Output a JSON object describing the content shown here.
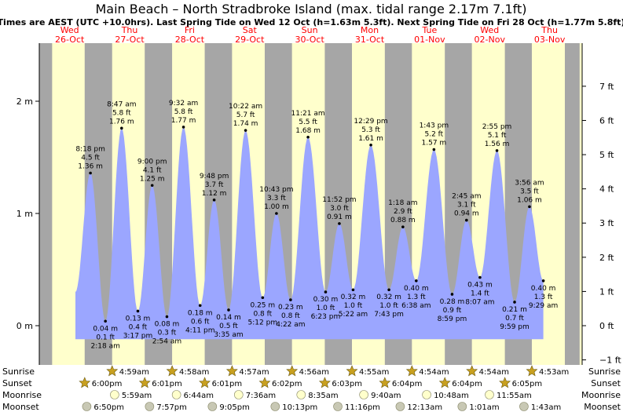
{
  "chart_data": {
    "type": "area",
    "title": "Main Beach – North Stradbroke Island (max. tidal range 2.17m 7.1ft)",
    "subtitle": "Times are AEST (UTC +10.0hrs). Last Spring Tide on Wed 12 Oct (h=1.63m 5.3ft). Next Spring Tide on Fri 28 Oct (h=1.77m 5.8ft)",
    "x_unit": "hours from 26-Oct 00:00",
    "ylim_m": [
      -0.3,
      2.35
    ],
    "y_ticks_m": [
      {
        "value": 0,
        "label": "0 m"
      },
      {
        "value": 1,
        "label": "1 m"
      },
      {
        "value": 2,
        "label": "2 m"
      }
    ],
    "y_ticks_ft": [
      {
        "value": -1,
        "label": "−1 ft"
      },
      {
        "value": 0,
        "label": "0 ft"
      },
      {
        "value": 1,
        "label": "1 ft"
      },
      {
        "value": 2,
        "label": "2 ft"
      },
      {
        "value": 3,
        "label": "3 ft"
      },
      {
        "value": 4,
        "label": "4 ft"
      },
      {
        "value": 5,
        "label": "5 ft"
      },
      {
        "value": 6,
        "label": "6 ft"
      },
      {
        "value": 7,
        "label": "7 ft"
      }
    ],
    "days": [
      {
        "day": "Wed",
        "date": "26-Oct",
        "hours": 0
      },
      {
        "day": "Thu",
        "date": "27-Oct",
        "hours": 24
      },
      {
        "day": "Fri",
        "date": "28-Oct",
        "hours": 48
      },
      {
        "day": "Sat",
        "date": "29-Oct",
        "hours": 72
      },
      {
        "day": "Sun",
        "date": "30-Oct",
        "hours": 96
      },
      {
        "day": "Mon",
        "date": "31-Oct",
        "hours": 120
      },
      {
        "day": "Tue",
        "date": "01-Nov",
        "hours": 144
      },
      {
        "day": "Wed",
        "date": "02-Nov",
        "hours": 168
      },
      {
        "day": "Thu",
        "date": "03-Nov",
        "hours": 192
      }
    ],
    "night_bands_hours": [
      [
        -6,
        4.98
      ],
      [
        18,
        28.98
      ],
      [
        42.02,
        52.97
      ],
      [
        66.02,
        76.95
      ],
      [
        90.03,
        100.93
      ],
      [
        114.05,
        124.92
      ],
      [
        138.07,
        148.9
      ],
      [
        162.07,
        172.9
      ],
      [
        186.08,
        196.88
      ],
      [
        210.08,
        216
      ]
    ],
    "tides": [
      {
        "t": 20.3,
        "h": 1.36,
        "time": "8:18 pm",
        "ft": "4.5 ft",
        "m": "1.36 m",
        "type": "high"
      },
      {
        "t": 26.3,
        "h": 0.04,
        "time": "2:18 am",
        "ft": "0.1 ft",
        "m": "0.04 m",
        "type": "low"
      },
      {
        "t": 32.78,
        "h": 1.76,
        "time": "8:47 am",
        "ft": "5.8 ft",
        "m": "1.76 m",
        "type": "high"
      },
      {
        "t": 39.28,
        "h": 0.13,
        "time": "3:17 pm",
        "ft": "0.4 ft",
        "m": "0.13 m",
        "type": "low"
      },
      {
        "t": 45.0,
        "h": 1.25,
        "time": "9:00 pm",
        "ft": "4.1 ft",
        "m": "1.25 m",
        "type": "high"
      },
      {
        "t": 50.9,
        "h": 0.08,
        "time": "2:54 am",
        "ft": "0.3 ft",
        "m": "0.08 m",
        "type": "low"
      },
      {
        "t": 57.53,
        "h": 1.77,
        "time": "9:32 am",
        "ft": "5.8 ft",
        "m": "1.77 m",
        "type": "high"
      },
      {
        "t": 64.18,
        "h": 0.18,
        "time": "4:11 pm",
        "ft": "0.6 ft",
        "m": "0.18 m",
        "type": "low"
      },
      {
        "t": 69.8,
        "h": 1.12,
        "time": "9:48 pm",
        "ft": "3.7 ft",
        "m": "1.12 m",
        "type": "high"
      },
      {
        "t": 75.58,
        "h": 0.14,
        "time": "3:35 am",
        "ft": "0.5 ft",
        "m": "0.14 m",
        "type": "low"
      },
      {
        "t": 82.37,
        "h": 1.74,
        "time": "10:22 am",
        "ft": "5.7 ft",
        "m": "1.74 m",
        "type": "high"
      },
      {
        "t": 89.2,
        "h": 0.25,
        "time": "5:12 pm",
        "ft": "0.8 ft",
        "m": "0.25 m",
        "type": "low"
      },
      {
        "t": 94.72,
        "h": 1.0,
        "time": "10:43 pm",
        "ft": "3.3 ft",
        "m": "1.00 m",
        "type": "high"
      },
      {
        "t": 100.37,
        "h": 0.23,
        "time": "4:22 am",
        "ft": "0.8 ft",
        "m": "0.23 m",
        "type": "low"
      },
      {
        "t": 107.35,
        "h": 1.68,
        "time": "11:21 am",
        "ft": "5.5 ft",
        "m": "1.68 m",
        "type": "high"
      },
      {
        "t": 114.38,
        "h": 0.3,
        "time": "6:23 pm",
        "ft": "1.0 ft",
        "m": "0.30 m",
        "type": "low"
      },
      {
        "t": 119.87,
        "h": 0.91,
        "time": "11:52 pm",
        "ft": "3.0 ft",
        "m": "0.91 m",
        "type": "high"
      },
      {
        "t": 125.37,
        "h": 0.32,
        "time": "5:22 am",
        "ft": "1.0 ft",
        "m": "0.32 m",
        "type": "low"
      },
      {
        "t": 132.48,
        "h": 1.61,
        "time": "12:29 pm",
        "ft": "5.3 ft",
        "m": "1.61 m",
        "type": "high"
      },
      {
        "t": 139.72,
        "h": 0.32,
        "time": "7:43 pm",
        "ft": "1.0 ft",
        "m": "0.32 m",
        "type": "low"
      },
      {
        "t": 145.3,
        "h": 0.88,
        "time": "1:18 am",
        "ft": "2.9 ft",
        "m": "0.88 m",
        "type": "high"
      },
      {
        "t": 150.63,
        "h": 0.4,
        "time": "6:38 am",
        "ft": "1.3 ft",
        "m": "0.40 m",
        "type": "low"
      },
      {
        "t": 157.72,
        "h": 1.57,
        "time": "1:43 pm",
        "ft": "5.2 ft",
        "m": "1.57 m",
        "type": "high"
      },
      {
        "t": 164.98,
        "h": 0.28,
        "time": "8:59 pm",
        "ft": "0.9 ft",
        "m": "0.28 m",
        "type": "low"
      },
      {
        "t": 170.75,
        "h": 0.94,
        "time": "2:45 am",
        "ft": "3.1 ft",
        "m": "0.94 m",
        "type": "high"
      },
      {
        "t": 176.12,
        "h": 0.43,
        "time": "8:07 am",
        "ft": "1.4 ft",
        "m": "0.43 m",
        "type": "low"
      },
      {
        "t": 182.92,
        "h": 1.56,
        "time": "2:55 pm",
        "ft": "5.1 ft",
        "m": "1.56 m",
        "type": "high"
      },
      {
        "t": 189.98,
        "h": 0.21,
        "time": "9:59 pm",
        "ft": "0.7 ft",
        "m": "0.21 m",
        "type": "low"
      },
      {
        "t": 195.93,
        "h": 1.06,
        "time": "3:56 am",
        "ft": "3.5 ft",
        "m": "1.06 m",
        "type": "high"
      },
      {
        "t": 201.48,
        "h": 0.4,
        "time": "9:29 am",
        "ft": "1.3 ft",
        "m": "0.40 m",
        "type": "low"
      }
    ],
    "curve_start": {
      "t": 14.3,
      "h": 0.3
    },
    "sun_moon": {
      "row_labels": [
        "Sunrise",
        "Sunset",
        "Moonrise",
        "Moonset"
      ],
      "sunrise": [
        {
          "t": 28.98,
          "label": "4:59am"
        },
        {
          "t": 52.97,
          "label": "4:58am"
        },
        {
          "t": 76.95,
          "label": "4:57am"
        },
        {
          "t": 100.93,
          "label": "4:56am"
        },
        {
          "t": 124.92,
          "label": "4:55am"
        },
        {
          "t": 148.9,
          "label": "4:54am"
        },
        {
          "t": 172.9,
          "label": "4:54am"
        },
        {
          "t": 196.88,
          "label": "4:53am"
        }
      ],
      "sunset": [
        {
          "t": 18.0,
          "label": "6:00pm"
        },
        {
          "t": 42.02,
          "label": "6:01pm"
        },
        {
          "t": 66.02,
          "label": "6:01pm"
        },
        {
          "t": 90.03,
          "label": "6:02pm"
        },
        {
          "t": 114.05,
          "label": "6:03pm"
        },
        {
          "t": 138.07,
          "label": "6:04pm"
        },
        {
          "t": 162.07,
          "label": "6:04pm"
        },
        {
          "t": 186.08,
          "label": "6:05pm"
        }
      ],
      "moonrise": [
        {
          "t": 29.98,
          "label": "5:59am"
        },
        {
          "t": 54.73,
          "label": "6:44am"
        },
        {
          "t": 79.6,
          "label": "7:36am"
        },
        {
          "t": 104.58,
          "label": "8:35am"
        },
        {
          "t": 129.67,
          "label": "9:40am"
        },
        {
          "t": 154.8,
          "label": "10:48am"
        },
        {
          "t": 179.92,
          "label": "11:55am"
        }
      ],
      "moonset": [
        {
          "t": 18.83,
          "label": "6:50pm"
        },
        {
          "t": 43.95,
          "label": "7:57pm"
        },
        {
          "t": 69.08,
          "label": "9:05pm"
        },
        {
          "t": 94.22,
          "label": "10:13pm"
        },
        {
          "t": 119.27,
          "label": "11:16pm"
        },
        {
          "t": 144.22,
          "label": "12:13am"
        },
        {
          "t": 169.02,
          "label": "1:01am"
        },
        {
          "t": 193.72,
          "label": "1:43am"
        }
      ]
    }
  }
}
